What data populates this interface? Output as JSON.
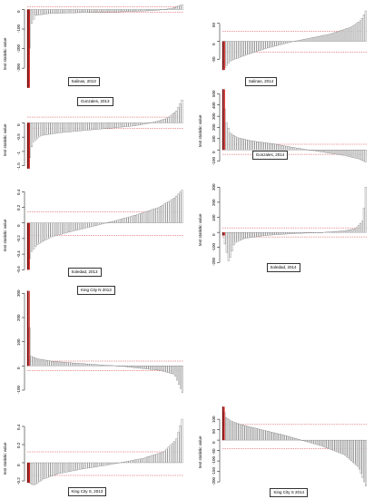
{
  "chart_data": [
    {
      "type": "bar",
      "label": "Salinas, 2013",
      "ylabel": "test statistic value",
      "ylim": [
        -420,
        30
      ],
      "yticks": [
        0,
        -100,
        -200,
        -300
      ],
      "thresholds": [
        15,
        -15
      ],
      "n": 80,
      "curve": [
        [
          0,
          -400
        ],
        [
          0.02,
          -80
        ],
        [
          0.05,
          -30
        ],
        [
          0.15,
          -20
        ],
        [
          0.4,
          -15
        ],
        [
          0.6,
          -12
        ],
        [
          0.75,
          -8
        ],
        [
          0.85,
          -3
        ],
        [
          0.93,
          5
        ],
        [
          1,
          25
        ]
      ]
    },
    {
      "type": "bar",
      "label": "Salinas, 2014",
      "ylabel": "",
      "ylim": [
        -90,
        90
      ],
      "yticks": [
        50,
        0,
        -50
      ],
      "thresholds": [
        28,
        -30
      ],
      "n": 80,
      "curve": [
        [
          0,
          -80
        ],
        [
          0.05,
          -55
        ],
        [
          0.15,
          -40
        ],
        [
          0.3,
          -20
        ],
        [
          0.45,
          -5
        ],
        [
          0.5,
          0
        ],
        [
          0.6,
          8
        ],
        [
          0.75,
          20
        ],
        [
          0.9,
          40
        ],
        [
          0.97,
          60
        ],
        [
          1,
          85
        ]
      ]
    },
    {
      "type": "bar",
      "label": "Gonzales, 2013",
      "ylabel": "test statistic value",
      "ylim": [
        -1.7,
        0.9
      ],
      "yticks": [
        0,
        -0.5,
        -1.0,
        -1.5
      ],
      "thresholds": [
        0.2,
        -0.2
      ],
      "n": 80,
      "curve": [
        [
          0,
          -1.6
        ],
        [
          0.03,
          -0.7
        ],
        [
          0.08,
          -0.45
        ],
        [
          0.2,
          -0.35
        ],
        [
          0.4,
          -0.25
        ],
        [
          0.55,
          -0.18
        ],
        [
          0.7,
          -0.1
        ],
        [
          0.8,
          0
        ],
        [
          0.9,
          0.15
        ],
        [
          0.96,
          0.4
        ],
        [
          1,
          0.8
        ]
      ]
    },
    {
      "type": "bar",
      "label": "Gonzales, 2014",
      "ylabel": "test statistic value",
      "ylim": [
        -120,
        560
      ],
      "yticks": [
        500,
        400,
        300,
        200,
        100,
        0,
        -100
      ],
      "thresholds": [
        50,
        -40
      ],
      "n": 80,
      "curve": [
        [
          0,
          540
        ],
        [
          0.02,
          260
        ],
        [
          0.05,
          150
        ],
        [
          0.1,
          110
        ],
        [
          0.2,
          80
        ],
        [
          0.35,
          55
        ],
        [
          0.5,
          20
        ],
        [
          0.6,
          0
        ],
        [
          0.7,
          -20
        ],
        [
          0.85,
          -50
        ],
        [
          0.95,
          -80
        ],
        [
          1,
          -110
        ]
      ]
    },
    {
      "type": "bar",
      "label": "Soledad, 2013",
      "ylabel": "test statistic value",
      "ylim": [
        -0.62,
        0.45
      ],
      "yticks": [
        0.4,
        0.2,
        0.0,
        -0.2,
        -0.4,
        -0.6
      ],
      "thresholds": [
        0.14,
        -0.16
      ],
      "n": 80,
      "curve": [
        [
          0,
          -0.6
        ],
        [
          0.02,
          -0.38
        ],
        [
          0.06,
          -0.28
        ],
        [
          0.15,
          -0.18
        ],
        [
          0.3,
          -0.1
        ],
        [
          0.45,
          -0.03
        ],
        [
          0.55,
          0.02
        ],
        [
          0.7,
          0.1
        ],
        [
          0.85,
          0.2
        ],
        [
          0.95,
          0.32
        ],
        [
          1,
          0.42
        ]
      ]
    },
    {
      "type": "bar",
      "label": "Soledad, 2014",
      "ylabel": "test statistic value",
      "ylim": [
        -210,
        320
      ],
      "yticks": [
        300,
        200,
        100,
        0,
        -100,
        -200
      ],
      "thresholds": [
        30,
        -30
      ],
      "n": 80,
      "curve": [
        [
          0,
          -20
        ],
        [
          0.04,
          -200
        ],
        [
          0.08,
          -70
        ],
        [
          0.15,
          -40
        ],
        [
          0.3,
          -20
        ],
        [
          0.5,
          -8
        ],
        [
          0.7,
          0
        ],
        [
          0.85,
          10
        ],
        [
          0.93,
          25
        ],
        [
          0.98,
          80
        ],
        [
          1,
          300
        ]
      ]
    },
    {
      "type": "bar",
      "label": "King City N 2013",
      "ylabel": "",
      "ylim": [
        -115,
        320
      ],
      "yticks": [
        300,
        200,
        100,
        0,
        -100
      ],
      "thresholds": [
        20,
        -20
      ],
      "n": 90,
      "curve": [
        [
          0,
          310
        ],
        [
          0.02,
          40
        ],
        [
          0.06,
          30
        ],
        [
          0.15,
          20
        ],
        [
          0.3,
          12
        ],
        [
          0.5,
          3
        ],
        [
          0.6,
          0
        ],
        [
          0.7,
          -8
        ],
        [
          0.85,
          -18
        ],
        [
          0.95,
          -35
        ],
        [
          1,
          -110
        ]
      ]
    },
    {
      "type": "bar",
      "label": "King City S, 2013",
      "ylabel": "test statistic value",
      "ylim": [
        -0.28,
        0.5
      ],
      "yticks": [
        0.4,
        0.2,
        0.0,
        -0.2
      ],
      "thresholds": [
        0.12,
        -0.14
      ],
      "n": 80,
      "curve": [
        [
          0,
          -0.22
        ],
        [
          0.04,
          -0.25
        ],
        [
          0.1,
          -0.18
        ],
        [
          0.2,
          -0.12
        ],
        [
          0.35,
          -0.07
        ],
        [
          0.5,
          -0.03
        ],
        [
          0.6,
          0
        ],
        [
          0.75,
          0.05
        ],
        [
          0.88,
          0.12
        ],
        [
          0.96,
          0.25
        ],
        [
          1,
          0.48
        ]
      ]
    },
    {
      "type": "bar",
      "label": "King City S 2014",
      "ylabel": "test statistic value",
      "ylim": [
        -230,
        170
      ],
      "yticks": [
        100,
        50,
        0,
        -50,
        -100,
        -150,
        -200
      ],
      "thresholds": [
        75,
        -40
      ],
      "n": 90,
      "curve": [
        [
          0,
          160
        ],
        [
          0.02,
          110
        ],
        [
          0.06,
          90
        ],
        [
          0.15,
          70
        ],
        [
          0.3,
          45
        ],
        [
          0.45,
          20
        ],
        [
          0.55,
          0
        ],
        [
          0.7,
          -30
        ],
        [
          0.85,
          -70
        ],
        [
          0.95,
          -130
        ],
        [
          1,
          -220
        ]
      ]
    }
  ]
}
